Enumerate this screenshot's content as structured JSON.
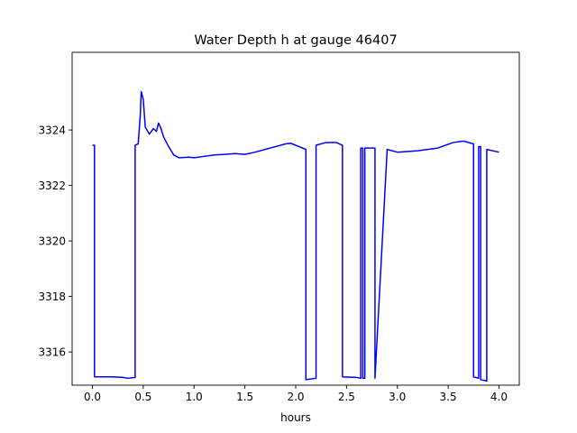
{
  "chart_data": {
    "type": "line",
    "title": "Water Depth h at gauge 46407",
    "xlabel": "hours",
    "ylabel": "",
    "xlim": [
      -0.2,
      4.2
    ],
    "ylim": [
      3314.8,
      3326.8
    ],
    "xticks": [
      0.0,
      0.5,
      1.0,
      1.5,
      2.0,
      2.5,
      3.0,
      3.5,
      4.0
    ],
    "xtick_labels": [
      "0.0",
      "0.5",
      "1.0",
      "1.5",
      "2.0",
      "2.5",
      "3.0",
      "3.5",
      "4.0"
    ],
    "yticks": [
      3316,
      3318,
      3320,
      3322,
      3324
    ],
    "ytick_labels": [
      "3316",
      "3318",
      "3320",
      "3322",
      "3324"
    ],
    "grid": false,
    "series": [
      {
        "color": "#0000ff",
        "x": [
          0.0,
          0.02,
          0.02,
          0.2,
          0.3,
          0.35,
          0.42,
          0.42,
          0.45,
          0.47,
          0.48,
          0.5,
          0.52,
          0.56,
          0.6,
          0.63,
          0.65,
          0.67,
          0.7,
          0.75,
          0.8,
          0.85,
          0.95,
          1.0,
          1.1,
          1.2,
          1.3,
          1.4,
          1.5,
          1.6,
          1.7,
          1.8,
          1.9,
          1.95,
          2.0,
          2.1,
          2.1,
          2.2,
          2.2,
          2.3,
          2.4,
          2.46,
          2.46,
          2.6,
          2.64,
          2.64,
          2.66,
          2.66,
          2.68,
          2.68,
          2.78,
          2.78,
          2.9,
          3.0,
          3.2,
          3.4,
          3.55,
          3.65,
          3.75,
          3.75,
          3.8,
          3.8,
          3.82,
          3.82,
          3.88,
          3.88,
          4.0
        ],
        "y": [
          3323.45,
          3323.45,
          3315.1,
          3315.1,
          3315.08,
          3315.05,
          3315.08,
          3323.45,
          3323.5,
          3324.5,
          3325.38,
          3325.1,
          3324.1,
          3323.85,
          3324.05,
          3323.95,
          3324.25,
          3324.1,
          3323.75,
          3323.4,
          3323.1,
          3323.0,
          3323.02,
          3323.0,
          3323.05,
          3323.1,
          3323.12,
          3323.15,
          3323.12,
          3323.2,
          3323.3,
          3323.4,
          3323.5,
          3323.52,
          3323.45,
          3323.3,
          3315.0,
          3315.05,
          3323.45,
          3323.55,
          3323.55,
          3323.45,
          3315.1,
          3315.08,
          3315.05,
          3323.35,
          3323.35,
          3315.05,
          3315.05,
          3323.35,
          3323.35,
          3315.05,
          3323.3,
          3323.2,
          3323.25,
          3323.35,
          3323.55,
          3323.6,
          3323.5,
          3315.1,
          3315.05,
          3323.4,
          3323.4,
          3315.0,
          3314.95,
          3323.3,
          3323.2
        ]
      }
    ]
  }
}
